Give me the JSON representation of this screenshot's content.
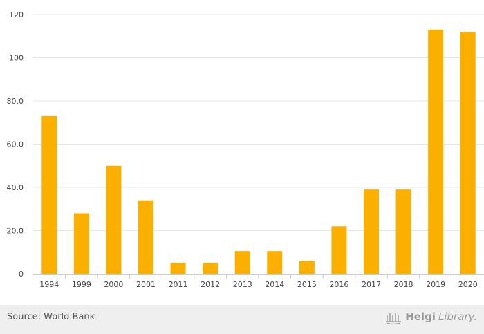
{
  "chart_data": {
    "type": "bar",
    "categories": [
      "1994",
      "1999",
      "2000",
      "2001",
      "2011",
      "2012",
      "2013",
      "2014",
      "2015",
      "2016",
      "2017",
      "2018",
      "2019",
      "2020"
    ],
    "values": [
      73,
      28,
      50,
      34,
      5,
      5,
      10.5,
      10.5,
      6,
      22,
      39,
      39,
      113,
      112
    ],
    "ylim": [
      0,
      120
    ],
    "yticks": [
      0,
      20,
      40,
      60,
      80,
      100,
      120
    ],
    "ytick_labels": [
      "0",
      "20.0",
      "40.0",
      "60.0",
      "80.0",
      "100",
      "120"
    ],
    "bar_color": "#FBB000",
    "grid": true
  },
  "footer": {
    "source": "Source: World Bank",
    "brand_bold": "Helgi",
    "brand_light": "Library."
  },
  "colors": {
    "bar": "#FBB000",
    "grid": "#e6e6e6",
    "footer_bg": "#efefef"
  },
  "icons": {
    "brand": "library-logo-icon"
  }
}
